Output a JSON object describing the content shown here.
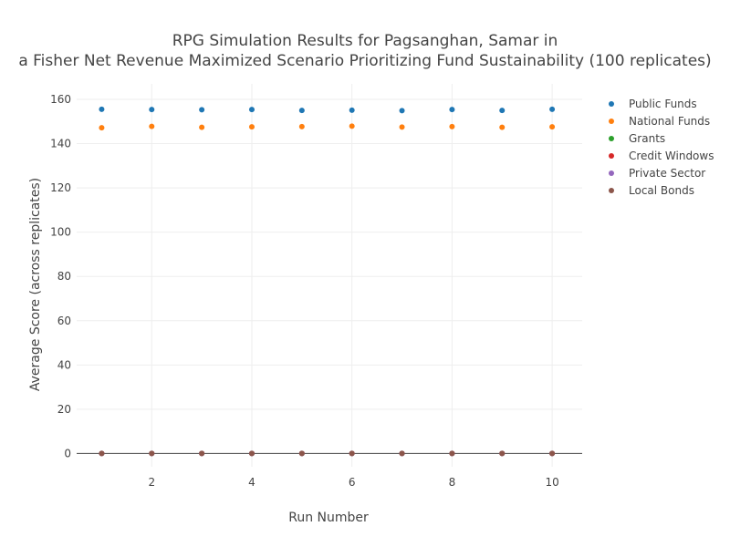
{
  "chart_data": {
    "type": "scatter",
    "title_lines": [
      "RPG Simulation Results for Pagsanghan, Samar in",
      "a Fisher Net Revenue Maximized Scenario Prioritizing Fund Sustainability (100 replicates)"
    ],
    "xlabel": "Run Number",
    "ylabel": "Average Score (across replicates)",
    "xlim": [
      0.5,
      10.6
    ],
    "ylim": [
      -6,
      167
    ],
    "xticks": [
      2,
      4,
      6,
      8,
      10
    ],
    "yticks": [
      0,
      20,
      40,
      60,
      80,
      100,
      120,
      140,
      160
    ],
    "grid": true,
    "legend_position": "right",
    "x": [
      1,
      2,
      3,
      4,
      5,
      6,
      7,
      8,
      9,
      10
    ],
    "series": [
      {
        "name": "Public Funds",
        "color": "#1f77b4",
        "values": [
          155.5,
          155.4,
          155.3,
          155.4,
          155.0,
          155.1,
          154.9,
          155.4,
          155.0,
          155.5
        ]
      },
      {
        "name": "National Funds",
        "color": "#ff7f0e",
        "values": [
          147.2,
          147.8,
          147.4,
          147.6,
          147.7,
          147.9,
          147.5,
          147.7,
          147.4,
          147.6
        ]
      },
      {
        "name": "Grants",
        "color": "#2ca02c",
        "values": [
          0,
          0,
          0,
          0,
          0,
          0,
          0,
          0,
          0,
          0
        ]
      },
      {
        "name": "Credit Windows",
        "color": "#d62728",
        "values": [
          0,
          0,
          0,
          0,
          0,
          0,
          0,
          0,
          0,
          0
        ]
      },
      {
        "name": "Private Sector",
        "color": "#9467bd",
        "values": [
          0,
          0,
          0,
          0,
          0,
          0,
          0,
          0,
          0,
          0
        ]
      },
      {
        "name": "Local Bonds",
        "color": "#8c564b",
        "values": [
          0,
          0,
          0,
          0,
          0,
          0,
          0,
          0,
          0,
          0
        ]
      }
    ]
  }
}
